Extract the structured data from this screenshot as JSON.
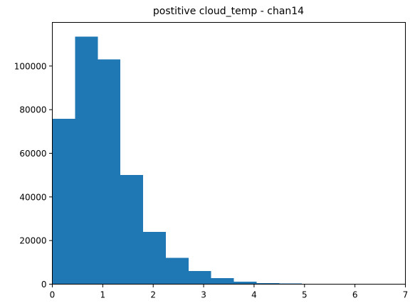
{
  "chart_data": {
    "type": "bar",
    "title": "postitive cloud_temp - chan14",
    "xlabel": "",
    "ylabel": "",
    "xlim": [
      0,
      7
    ],
    "ylim": [
      0,
      120000
    ],
    "xticks": [
      0,
      1,
      2,
      3,
      4,
      5,
      6,
      7
    ],
    "xtick_labels": [
      "0",
      "1",
      "2",
      "3",
      "4",
      "5",
      "6",
      "7"
    ],
    "yticks": [
      0,
      20000,
      40000,
      60000,
      80000,
      100000
    ],
    "ytick_labels": [
      "0",
      "20000",
      "40000",
      "60000",
      "80000",
      "100000"
    ],
    "grid": false,
    "legend": false,
    "bar_color": "#1f77b4",
    "bins": [
      {
        "x0": 0.0,
        "x1": 0.45,
        "value": 75800
      },
      {
        "x0": 0.45,
        "x1": 0.9,
        "value": 113500
      },
      {
        "x0": 0.9,
        "x1": 1.35,
        "value": 103000
      },
      {
        "x0": 1.35,
        "x1": 1.8,
        "value": 50000
      },
      {
        "x0": 1.8,
        "x1": 2.25,
        "value": 24000
      },
      {
        "x0": 2.25,
        "x1": 2.7,
        "value": 12000
      },
      {
        "x0": 2.7,
        "x1": 3.15,
        "value": 6000
      },
      {
        "x0": 3.15,
        "x1": 3.6,
        "value": 2700
      },
      {
        "x0": 3.6,
        "x1": 4.05,
        "value": 1200
      },
      {
        "x0": 4.05,
        "x1": 4.5,
        "value": 550
      },
      {
        "x0": 4.5,
        "x1": 4.95,
        "value": 250
      },
      {
        "x0": 4.95,
        "x1": 5.4,
        "value": 100
      },
      {
        "x0": 5.4,
        "x1": 5.85,
        "value": 40
      },
      {
        "x0": 5.85,
        "x1": 6.3,
        "value": 15
      },
      {
        "x0": 6.3,
        "x1": 6.75,
        "value": 5
      }
    ]
  }
}
